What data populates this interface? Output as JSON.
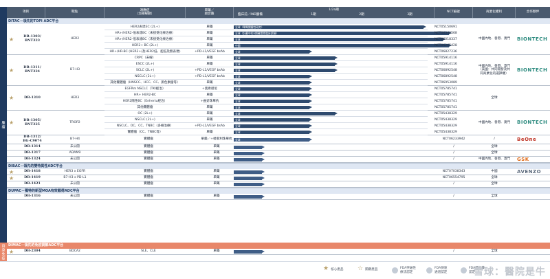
{
  "sidebar": {
    "main": "腫瘤",
    "sub": "自身免疫"
  },
  "header": {
    "project": "項目",
    "target": "靶點",
    "indication": "適應症\n（治療線數）",
    "regimen": "單藥／\n組合藥",
    "phase_top": "1/2a期",
    "phases": [
      "臨床前／IND籌備",
      "1期",
      "2期",
      "3期"
    ],
    "nct": "NCT編號",
    "rights": "商業化權利",
    "partner": "合作夥伴"
  },
  "platforms": {
    "ditac": "DITAC－領先的TOPⅠ ADC平台",
    "dibac": "DIBAC－領先的雙特異性ADC平台",
    "dupac": "DUPAC－獨特的新型MOA有效載荷ADC平台",
    "dimac": "DIMAC－領先的免疫調節ADC平台"
  },
  "groups": [
    {
      "code": "DB-1303/\nBNT323",
      "target": "HER2",
      "star": true,
      "rights": "中國內地、香港、澳門",
      "partner": "BIONTECH",
      "rows": [
        {
          "ind": "HER2表達EC (2L+)",
          "reg": "單藥",
          "bar": "全球（單臂關鍵性研究）",
          "stage": 3.0,
          "nct": "NCT05150691"
        },
        {
          "ind": "HR+/HER2-低表達BC（未接受化療治療）",
          "reg": "單藥",
          "bar": "全球（計劃中的3期確證性臨床試驗）",
          "stage": 3.4,
          "nct": "NCT06340568"
        },
        {
          "ind": "HR+/HER2-低表達BC（未接受化療治療）",
          "reg": "單藥",
          "bar": "全球",
          "stage": 3.3,
          "nct": "NCT06018337"
        },
        {
          "ind": "HER2+ BC (2L+)",
          "reg": "單藥",
          "bar": "中國",
          "stage": 3.4,
          "nct": "NCT06265428"
        },
        {
          "ind": "HR+/HR-BC (HER2+/及HER2低、超低及無表達)",
          "reg": "+PD-L1/VEGF bsAb",
          "bar": "全球",
          "stage": 1.2,
          "nct": "NCT06827236"
        }
      ]
    },
    {
      "code": "DB-1311/\nBNT324",
      "target": "B7-H3",
      "star": true,
      "rights": "中國內地、香港、澳門\n（美國：共同開發及共\n同商業化的選擇權）",
      "partner": "BIONTECH",
      "rows": [
        {
          "ind": "CRPC（未線）",
          "reg": "單藥",
          "bar": "全球",
          "stage": 1.6,
          "nct": "NCT05914116"
        },
        {
          "ind": "ESCC (2L+)",
          "reg": "單藥",
          "bar": "全球",
          "stage": 1.6,
          "nct": "NCT05914116"
        },
        {
          "ind": "SCLC (2L+)",
          "reg": "+PD-L1/VEGF bsAb",
          "bar": "全球",
          "stage": 1.6,
          "nct": "NCT06892548"
        },
        {
          "ind": "NSCLC (2L+)",
          "reg": "+PD-L1/VEGF bsAb",
          "bar": "全球",
          "stage": 1.2,
          "nct": "NCT06892548"
        },
        {
          "ind": "其他實體瘤（HNSCC、HCC、CC、黑色素瘤等）",
          "reg": "單藥",
          "bar": "全球",
          "stage": 1.2,
          "nct": "NCT06953089"
        }
      ]
    },
    {
      "code": "DB-1310",
      "target": "HER3",
      "star": true,
      "rights": "全球",
      "partner": "",
      "rows": [
        {
          "ind": "EGFRm NSCLC（TKI經治）",
          "reg": "+奧希替尼",
          "bar": "全球",
          "stage": 1.2,
          "nct": "NCT05785741"
        },
        {
          "ind": "HR+ HER2-BC",
          "reg": "單藥",
          "bar": "全球",
          "stage": 1.2,
          "nct": "NCT05785741"
        },
        {
          "ind": "HER2陽性BC（Enhertu經治）",
          "reg": "+曲妥珠單抗",
          "bar": "全球",
          "stage": 1.2,
          "nct": "NCT05785741"
        },
        {
          "ind": "其他實體瘤",
          "reg": "單藥",
          "bar": "全球",
          "stage": 1.2,
          "nct": "NCT05785741"
        }
      ]
    },
    {
      "code": "DB-1305/\nBNT325",
      "target": "TROP2",
      "star": true,
      "rights": "中國內地、香港、澳門",
      "partner": "BIONTECH",
      "rows": [
        {
          "ind": "OC (2L+)",
          "reg": "單藥",
          "bar": "全球",
          "stage": 1.6,
          "nct": "NCT05438329"
        },
        {
          "ind": "NSCLC (2L+)",
          "reg": "單藥",
          "bar": "全球",
          "stage": 1.2,
          "nct": "NCT05438329"
        },
        {
          "ind": "NSCLC、OC、CC、TNBC（多線治療）",
          "reg": "+PD-L1/VEGF bsAb",
          "bar": "全球",
          "stage": 1.2,
          "nct": "NCT05438329"
        },
        {
          "ind": "實體瘤（CC、TNBC等）",
          "reg": "單藥",
          "bar": "全球",
          "stage": 1.2,
          "nct": "NCT05438329"
        }
      ]
    }
  ],
  "singles": [
    {
      "code": "DB-1312/\nBG-C9074",
      "target": "B7-H4",
      "ind": "實體瘤",
      "reg": "單藥／+替雷利珠單抗",
      "bar": "全球",
      "stage": 1.2,
      "nct": "NCT06233942",
      "rights": "/",
      "partner": "BeOne",
      "h": 13
    },
    {
      "code": "DB-1314",
      "target": "未公開",
      "ind": "實體瘤",
      "reg": "單藥",
      "bar": "",
      "stage": 0.45,
      "nct": "/",
      "rights": "全球",
      "partner": ""
    },
    {
      "code": "DB-1317",
      "target": "ADAM9",
      "ind": "實體瘤",
      "reg": "單藥",
      "bar": "",
      "stage": 0.45,
      "nct": "/",
      "rights": "全球",
      "partner": ""
    },
    {
      "code": "DB-1324",
      "target": "未公開",
      "ind": "實體瘤",
      "reg": "單藥",
      "bar": "",
      "stage": 0.45,
      "nct": "/",
      "rights": "中國內地、香港、澳門",
      "partner": "GSK"
    }
  ],
  "dibac_rows": [
    {
      "code": "DB-1418",
      "target": "HER3 x EGFR",
      "ind": "實體瘤",
      "reg": "單藥",
      "stage": 0.45,
      "nct": "NCT07038343",
      "rights": "中國",
      "partner": "AVENZO",
      "star": true
    },
    {
      "code": "DB-1419",
      "target": "B7-H3 x PD-L1",
      "ind": "實體瘤",
      "reg": "單藥",
      "stage": 0.45,
      "nct": "NCT06554795",
      "rights": "全球",
      "partner": "",
      "star": true
    },
    {
      "code": "DB-1421",
      "target": "未公開",
      "ind": "實體瘤",
      "reg": "單藥",
      "stage": 0.45,
      "nct": "/",
      "rights": "全球",
      "partner": ""
    }
  ],
  "dupac_rows": [
    {
      "code": "DB-1316",
      "target": "未公開",
      "ind": "實體瘤",
      "reg": "單藥",
      "stage": 0.45,
      "nct": "/",
      "rights": "全球",
      "partner": ""
    }
  ],
  "dimac_rows": [
    {
      "code": "DB-2304",
      "target": "BDCA2",
      "ind": "SLE、CLE",
      "reg": "單藥",
      "stage": 0.45,
      "nct": "/",
      "rights": "全球",
      "partner": "",
      "star": true
    }
  ],
  "legend": [
    {
      "icon": "star-icon",
      "label": "核心產品"
    },
    {
      "icon": "star-outline-icon",
      "label": "關鍵產品"
    },
    {
      "icon": "fda-fast-track-icon",
      "label": "FDA突破性\n療法認定"
    },
    {
      "icon": "fda-fast-icon",
      "label": "FDA快速\n通道認定"
    },
    {
      "icon": "fda-orphan-icon",
      "label": "FDA孤兒藥\n認定"
    }
  ],
  "watermark": "雪球：醫院是牛",
  "colors": {
    "navy": "#1f3a60",
    "bar": "#2e4a6e",
    "orange": "#e8876a",
    "header": "#4a5a6e"
  }
}
